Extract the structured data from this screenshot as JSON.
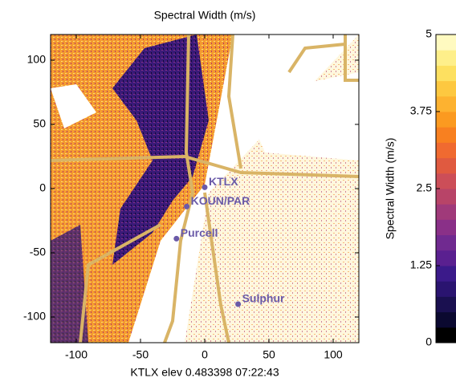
{
  "chart_data": {
    "type": "radar",
    "title": "Spectral Width (m/s)",
    "x_label": "KTLX elev 0.483398 07:22:43",
    "xlim": [
      -120,
      120
    ],
    "xticks": [
      -100,
      -50,
      0,
      50,
      100
    ],
    "ylim": [
      -120,
      120
    ],
    "yticks": [
      -100,
      -50,
      0,
      50,
      100
    ],
    "stations": [
      {
        "name": "KTLX",
        "x": 0,
        "y": 1
      },
      {
        "name": "KOUN/PAR",
        "x": -14,
        "y": -14
      },
      {
        "name": "Purcell",
        "x": -22,
        "y": -39
      },
      {
        "name": "Sulphur",
        "x": 26,
        "y": -90
      }
    ],
    "station_color": "#6a5aa8",
    "colorbar": {
      "label": "Spectral Width (m/s)",
      "lim": [
        0,
        5
      ],
      "ticks": [
        0,
        1.25,
        2.5,
        3.75,
        5
      ],
      "colors": [
        "#000000",
        "#0b0930",
        "#1a1050",
        "#2a1470",
        "#3b1a8a",
        "#5a2090",
        "#702a90",
        "#8a3088",
        "#a03a7a",
        "#b84468",
        "#cc4e58",
        "#e05a40",
        "#f06a30",
        "#f88020",
        "#fb9a20",
        "#fdb230",
        "#fdc840",
        "#fde060",
        "#feef8a",
        "#fffac0"
      ]
    }
  }
}
